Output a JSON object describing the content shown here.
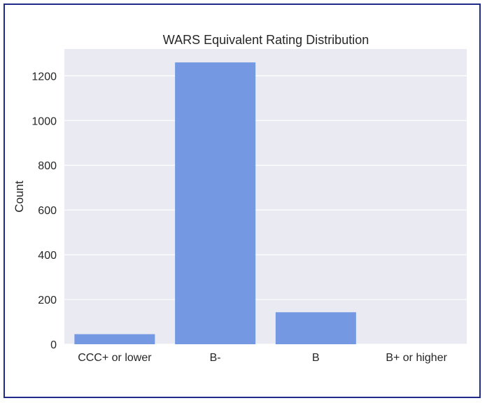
{
  "chart_data": {
    "type": "bar",
    "title": "WARS Equivalent Rating Distribution",
    "xlabel": "",
    "ylabel": "Count",
    "categories": [
      "CCC+ or lower",
      "B-",
      "B",
      "B+ or higher"
    ],
    "values": [
      45,
      1260,
      143,
      0
    ],
    "ylim": [
      0,
      1320
    ],
    "yticks": [
      0,
      200,
      400,
      600,
      800,
      1000,
      1200
    ],
    "grid": true,
    "legend": "none",
    "colors": {
      "bar": "#7499e2",
      "plot_background": "#eaeaf2",
      "grid": "#ffffff",
      "frame_border": "#1f2a8a"
    }
  }
}
